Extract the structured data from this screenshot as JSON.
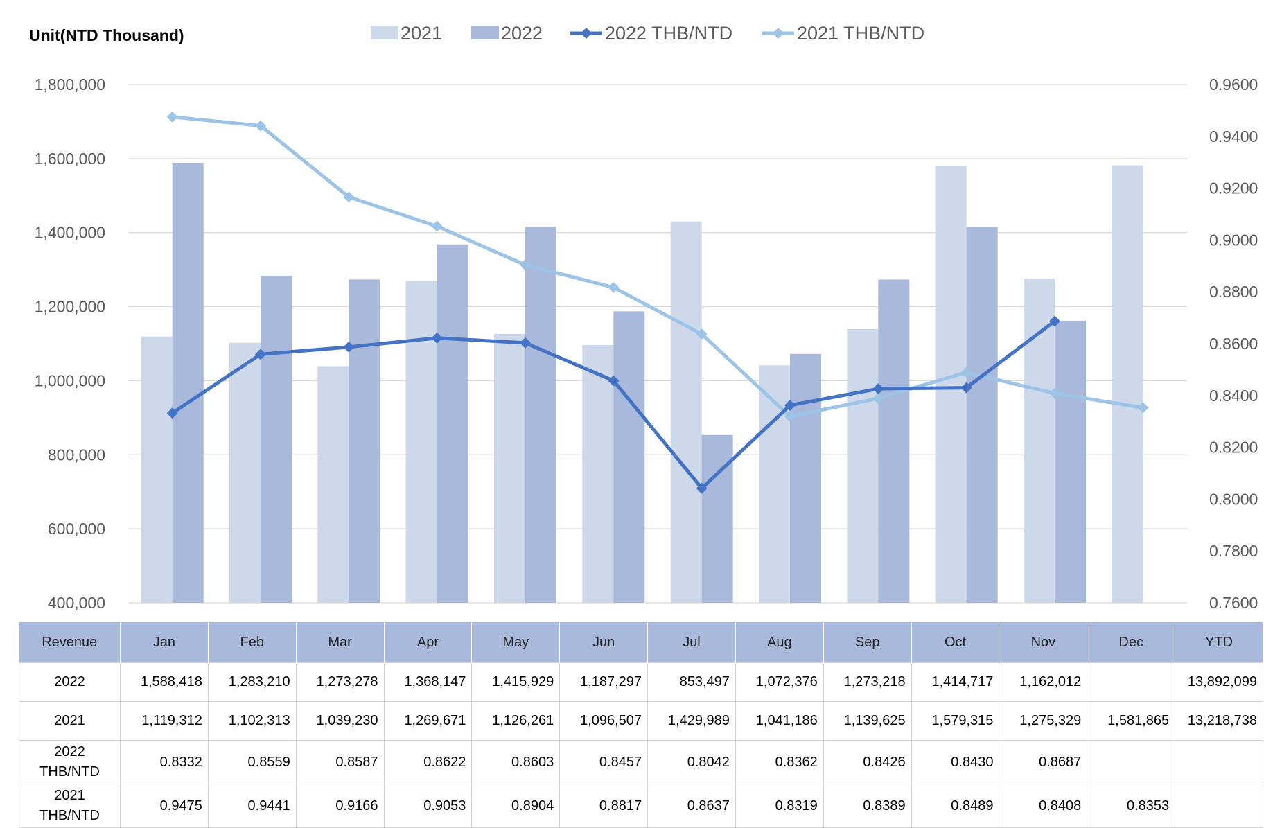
{
  "unit_label": "Unit(NTD Thousand)",
  "chart_data": {
    "type": "bar",
    "categories": [
      "Jan",
      "Feb",
      "Mar",
      "Apr",
      "May",
      "Jun",
      "Jul",
      "Aug",
      "Sep",
      "Oct",
      "Nov",
      "Dec"
    ],
    "series": [
      {
        "name": "2021",
        "kind": "bar",
        "axis": "left",
        "color": "#cdd8ea",
        "values": [
          1119312,
          1102313,
          1039230,
          1269671,
          1126261,
          1096507,
          1429989,
          1041186,
          1139625,
          1579315,
          1275329,
          1581865
        ]
      },
      {
        "name": "2022",
        "kind": "bar",
        "axis": "left",
        "color": "#a8b9dc",
        "values": [
          1588418,
          1283210,
          1273278,
          1368147,
          1415929,
          1187297,
          853497,
          1072376,
          1273218,
          1414717,
          1162012,
          null
        ]
      },
      {
        "name": "2022 THB/NTD",
        "kind": "line",
        "axis": "right",
        "color": "#4472c4",
        "values": [
          0.8332,
          0.8559,
          0.8587,
          0.8622,
          0.8603,
          0.8457,
          0.8042,
          0.8362,
          0.8426,
          0.843,
          0.8687,
          null
        ]
      },
      {
        "name": "2021 THB/NTD",
        "kind": "line",
        "axis": "right",
        "color": "#9dc3e6",
        "values": [
          0.9475,
          0.9441,
          0.9166,
          0.9053,
          0.8904,
          0.8817,
          0.8637,
          0.8319,
          0.8389,
          0.8489,
          0.8408,
          0.8353
        ]
      }
    ],
    "ylim_left": [
      400000,
      1800000
    ],
    "ytick_left": [
      "400,000",
      "600,000",
      "800,000",
      "1,000,000",
      "1,200,000",
      "1,400,000",
      "1,600,000",
      "1,800,000"
    ],
    "ylim_right": [
      0.76,
      0.96
    ],
    "ytick_right": [
      "0.7600",
      "0.7800",
      "0.8000",
      "0.8200",
      "0.8400",
      "0.8600",
      "0.8800",
      "0.9000",
      "0.9200",
      "0.9400",
      "0.9600"
    ],
    "grid": true,
    "legend_position": "top"
  },
  "table": {
    "header": [
      "Revenue",
      "Jan",
      "Feb",
      "Mar",
      "Apr",
      "May",
      "Jun",
      "Jul",
      "Aug",
      "Sep",
      "Oct",
      "Nov",
      "Dec",
      "YTD"
    ],
    "rows": [
      {
        "label": "2022",
        "cells": [
          "1,588,418",
          "1,283,210",
          "1,273,278",
          "1,368,147",
          "1,415,929",
          "1,187,297",
          "853,497",
          "1,072,376",
          "1,273,218",
          "1,414,717",
          "1,162,012",
          "",
          "13,892,099"
        ]
      },
      {
        "label": "2021",
        "cells": [
          "1,119,312",
          "1,102,313",
          "1,039,230",
          "1,269,671",
          "1,126,261",
          "1,096,507",
          "1,429,989",
          "1,041,186",
          "1,139,625",
          "1,579,315",
          "1,275,329",
          "1,581,865",
          "13,218,738"
        ]
      },
      {
        "label": "2022\nTHB/NTD",
        "cells": [
          "0.8332",
          "0.8559",
          "0.8587",
          "0.8622",
          "0.8603",
          "0.8457",
          "0.8042",
          "0.8362",
          "0.8426",
          "0.8430",
          "0.8687",
          "",
          ""
        ]
      },
      {
        "label": "2021\nTHB/NTD",
        "cells": [
          "0.9475",
          "0.9441",
          "0.9166",
          "0.9053",
          "0.8904",
          "0.8817",
          "0.8637",
          "0.8319",
          "0.8389",
          "0.8489",
          "0.8408",
          "0.8353",
          ""
        ]
      }
    ]
  }
}
